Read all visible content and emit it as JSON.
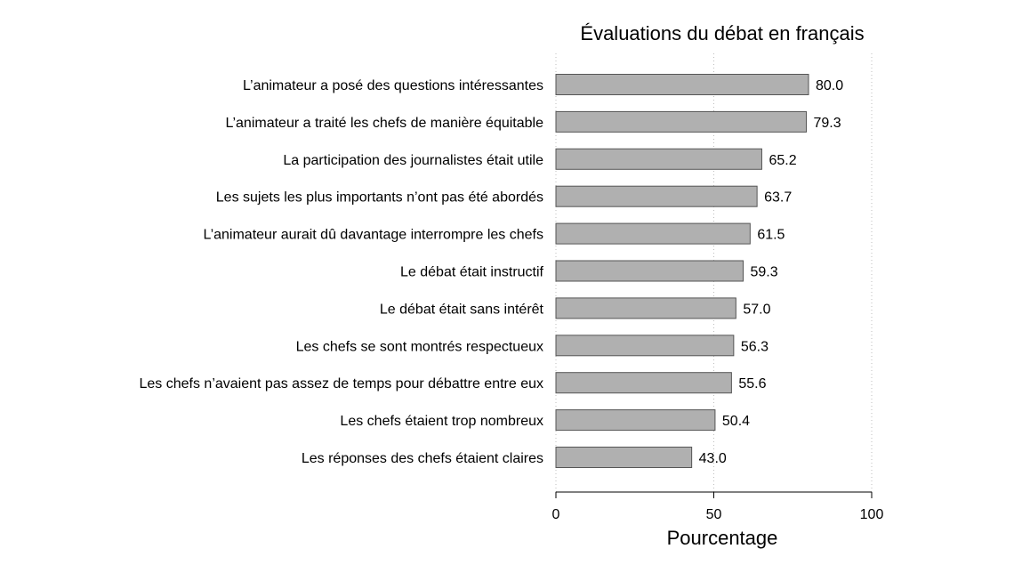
{
  "chart_data": {
    "type": "bar",
    "orientation": "horizontal",
    "title": "Évaluations du débat en français",
    "xlabel": "Pourcentage",
    "ylabel": "",
    "xlim": [
      0,
      100
    ],
    "xticks": [
      0,
      50,
      100
    ],
    "grid": "vertical dotted at ticks",
    "categories": [
      "L’animateur a posé des questions intéressantes",
      "L’animateur a traité les chefs de manière équitable",
      "La participation des journalistes était utile",
      "Les sujets les plus importants n’ont pas été abordés",
      "L’animateur aurait dû davantage interrompre les chefs",
      "Le débat était instructif",
      "Le débat était sans intérêt",
      "Les chefs se sont montrés respectueux",
      "Les chefs n’avaient pas assez de temps pour débattre entre eux",
      "Les chefs étaient trop nombreux",
      "Les réponses des chefs étaient claires"
    ],
    "values": [
      80.0,
      79.3,
      65.2,
      63.7,
      61.5,
      59.3,
      57.0,
      56.3,
      55.6,
      50.4,
      43.0
    ],
    "value_labels": [
      "80.0",
      "79.3",
      "65.2",
      "63.7",
      "61.5",
      "59.3",
      "57.0",
      "56.3",
      "55.6",
      "50.4",
      "43.0"
    ],
    "colors": {
      "bar_fill": "#b0b0b0",
      "bar_stroke": "#555555",
      "grid": "#bdbdbd"
    }
  }
}
